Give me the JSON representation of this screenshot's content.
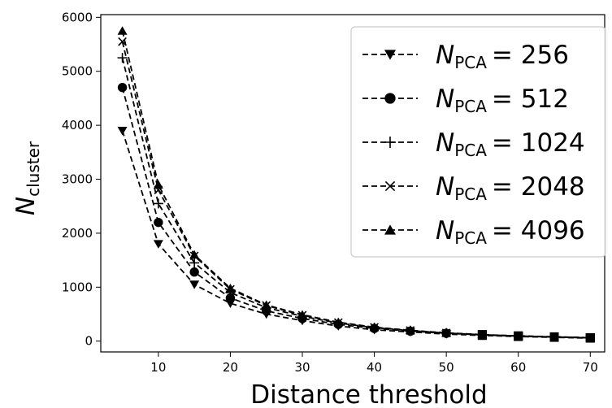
{
  "chart_data": {
    "type": "line",
    "xlabel": "Distance threshold",
    "ylabel": {
      "base": "N",
      "sub": "cluster"
    },
    "xlim": [
      2,
      72
    ],
    "ylim": [
      -200,
      6050
    ],
    "xticks": [
      10,
      20,
      30,
      40,
      50,
      60,
      70
    ],
    "yticks": [
      0,
      1000,
      2000,
      3000,
      4000,
      5000,
      6000
    ],
    "grid": false,
    "legend_position": "top-right",
    "x": [
      5,
      10,
      15,
      20,
      25,
      30,
      35,
      40,
      45,
      50,
      55,
      60,
      65,
      70
    ],
    "series": [
      {
        "name": "256",
        "label_base": "N",
        "label_sub": "PCA",
        "label_eq": "= 256",
        "marker": "triangle-down",
        "values": [
          3900,
          1800,
          1050,
          700,
          500,
          380,
          280,
          210,
          170,
          130,
          105,
          85,
          70,
          55
        ]
      },
      {
        "name": "512",
        "label_base": "N",
        "label_sub": "PCA",
        "label_eq": "= 512",
        "marker": "circle",
        "values": [
          4700,
          2200,
          1280,
          800,
          560,
          420,
          310,
          235,
          185,
          145,
          115,
          92,
          75,
          60
        ]
      },
      {
        "name": "1024",
        "label_base": "N",
        "label_sub": "PCA",
        "label_eq": "= 1024",
        "marker": "plus",
        "values": [
          5250,
          2550,
          1450,
          900,
          620,
          460,
          335,
          250,
          195,
          150,
          118,
          95,
          78,
          62
        ]
      },
      {
        "name": "2048",
        "label_base": "N",
        "label_sub": "PCA",
        "label_eq": "= 2048",
        "marker": "x",
        "values": [
          5550,
          2800,
          1580,
          960,
          660,
          480,
          345,
          255,
          198,
          152,
          120,
          96,
          79,
          63
        ]
      },
      {
        "name": "4096",
        "label_base": "N",
        "label_sub": "PCA",
        "label_eq": "= 4096",
        "marker": "triangle-up",
        "values": [
          5750,
          2900,
          1600,
          980,
          670,
          490,
          350,
          258,
          200,
          153,
          121,
          97,
          80,
          64
        ]
      }
    ]
  }
}
